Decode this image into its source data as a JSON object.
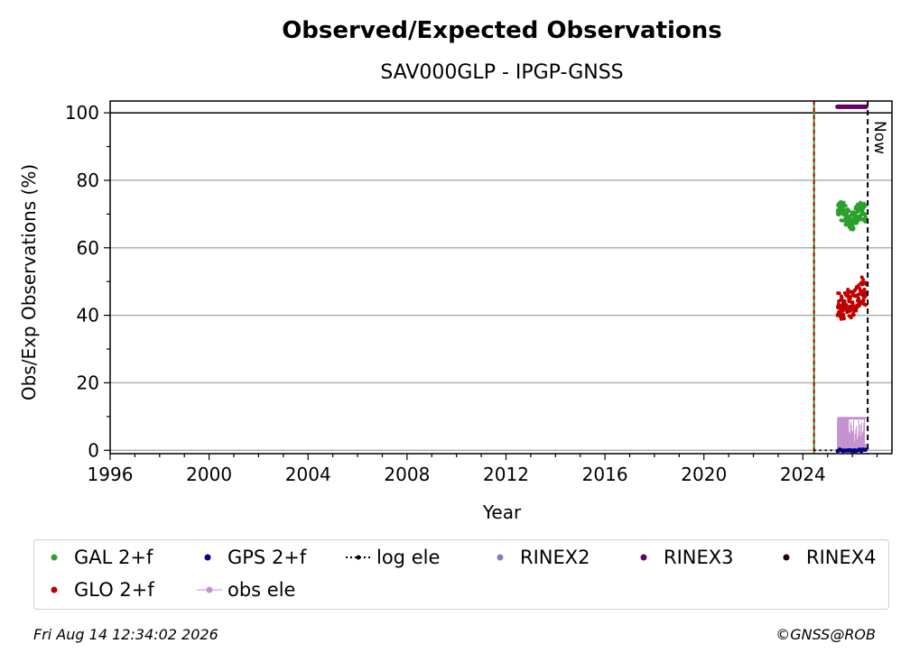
{
  "chart_data": {
    "type": "scatter",
    "title": "Observed/Expected Observations",
    "subtitle": "SAV000GLP - IPGP-GNSS",
    "xlabel": "Year",
    "ylabel": "Obs/Exp Observations (%)",
    "xlim": [
      1996,
      2027.6
    ],
    "ylim": [
      -1,
      103.5
    ],
    "x_ticks": [
      1996,
      2000,
      2004,
      2008,
      2012,
      2016,
      2020,
      2024
    ],
    "y_ticks": [
      0,
      20,
      40,
      60,
      80,
      100
    ],
    "grid": "horizontal",
    "reference_lines": {
      "hundred_percent": 100,
      "start_year": 2024.45,
      "now_year": 2026.62,
      "now_label": "Now"
    },
    "series": [
      {
        "name": "GAL 2+f",
        "color": "#2ca02c",
        "x": [
          2025.4,
          2025.6,
          2025.8,
          2026.0,
          2026.2,
          2026.4,
          2026.55
        ],
        "y": [
          70,
          71,
          69,
          68,
          70,
          71,
          70
        ]
      },
      {
        "name": "GLO 2+f",
        "color": "#c00000",
        "x": [
          2025.4,
          2025.6,
          2025.8,
          2026.0,
          2026.2,
          2026.4,
          2026.55
        ],
        "y": [
          43,
          42,
          44,
          43,
          46,
          48,
          46
        ]
      },
      {
        "name": "GPS 2+f",
        "color": "#00008b",
        "x": [
          2025.4,
          2025.8,
          2026.2,
          2026.55
        ],
        "y": [
          0,
          0,
          0,
          0
        ]
      },
      {
        "name": "RINEX3",
        "color": "#660066",
        "x_start": 2025.4,
        "x_end": 2026.55,
        "y": 101.8
      },
      {
        "name": "obs ele",
        "color": "#c490cf",
        "x_start": 2025.4,
        "x_end": 2026.55,
        "y": 9.5
      },
      {
        "name": "log ele",
        "color": "#000000",
        "x_start": 2024.45,
        "x_end": 2025.4,
        "y": 0
      }
    ]
  },
  "legend": {
    "items": [
      {
        "label": "GAL 2+f",
        "color": "#2ca02c",
        "style": "dot"
      },
      {
        "label": "GPS 2+f",
        "color": "#00008b",
        "style": "dot"
      },
      {
        "label": "log ele",
        "color": "#000000",
        "style": "dotted-line"
      },
      {
        "label": "RINEX2",
        "color": "#7f7fbf",
        "style": "dot"
      },
      {
        "label": "RINEX3",
        "color": "#660066",
        "style": "dot"
      },
      {
        "label": "RINEX4",
        "color": "#1a0010",
        "style": "dot"
      },
      {
        "label": "GLO 2+f",
        "color": "#c00000",
        "style": "dot"
      },
      {
        "label": "obs ele",
        "color": "#c490cf",
        "style": "line-dot"
      }
    ]
  },
  "footer": {
    "timestamp": "Fri Aug 14 12:34:02 2026",
    "credit": "©GNSS@ROB"
  }
}
